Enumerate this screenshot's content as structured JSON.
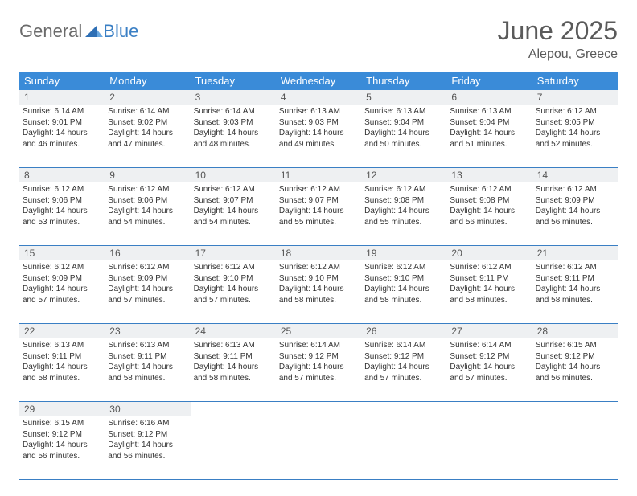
{
  "logo": {
    "text1": "General",
    "text2": "Blue"
  },
  "title": "June 2025",
  "location": "Alepou, Greece",
  "colors": {
    "header_bg": "#3a8bd8",
    "header_text": "#ffffff",
    "rule": "#3a7fc4",
    "daynum_bg": "#eef0f2",
    "body_text": "#333333",
    "title_text": "#5a5a5a"
  },
  "day_names": [
    "Sunday",
    "Monday",
    "Tuesday",
    "Wednesday",
    "Thursday",
    "Friday",
    "Saturday"
  ],
  "weeks": [
    {
      "nums": [
        "1",
        "2",
        "3",
        "4",
        "5",
        "6",
        "7"
      ],
      "cells": [
        {
          "sunrise": "Sunrise: 6:14 AM",
          "sunset": "Sunset: 9:01 PM",
          "day1": "Daylight: 14 hours",
          "day2": "and 46 minutes."
        },
        {
          "sunrise": "Sunrise: 6:14 AM",
          "sunset": "Sunset: 9:02 PM",
          "day1": "Daylight: 14 hours",
          "day2": "and 47 minutes."
        },
        {
          "sunrise": "Sunrise: 6:14 AM",
          "sunset": "Sunset: 9:03 PM",
          "day1": "Daylight: 14 hours",
          "day2": "and 48 minutes."
        },
        {
          "sunrise": "Sunrise: 6:13 AM",
          "sunset": "Sunset: 9:03 PM",
          "day1": "Daylight: 14 hours",
          "day2": "and 49 minutes."
        },
        {
          "sunrise": "Sunrise: 6:13 AM",
          "sunset": "Sunset: 9:04 PM",
          "day1": "Daylight: 14 hours",
          "day2": "and 50 minutes."
        },
        {
          "sunrise": "Sunrise: 6:13 AM",
          "sunset": "Sunset: 9:04 PM",
          "day1": "Daylight: 14 hours",
          "day2": "and 51 minutes."
        },
        {
          "sunrise": "Sunrise: 6:12 AM",
          "sunset": "Sunset: 9:05 PM",
          "day1": "Daylight: 14 hours",
          "day2": "and 52 minutes."
        }
      ]
    },
    {
      "nums": [
        "8",
        "9",
        "10",
        "11",
        "12",
        "13",
        "14"
      ],
      "cells": [
        {
          "sunrise": "Sunrise: 6:12 AM",
          "sunset": "Sunset: 9:06 PM",
          "day1": "Daylight: 14 hours",
          "day2": "and 53 minutes."
        },
        {
          "sunrise": "Sunrise: 6:12 AM",
          "sunset": "Sunset: 9:06 PM",
          "day1": "Daylight: 14 hours",
          "day2": "and 54 minutes."
        },
        {
          "sunrise": "Sunrise: 6:12 AM",
          "sunset": "Sunset: 9:07 PM",
          "day1": "Daylight: 14 hours",
          "day2": "and 54 minutes."
        },
        {
          "sunrise": "Sunrise: 6:12 AM",
          "sunset": "Sunset: 9:07 PM",
          "day1": "Daylight: 14 hours",
          "day2": "and 55 minutes."
        },
        {
          "sunrise": "Sunrise: 6:12 AM",
          "sunset": "Sunset: 9:08 PM",
          "day1": "Daylight: 14 hours",
          "day2": "and 55 minutes."
        },
        {
          "sunrise": "Sunrise: 6:12 AM",
          "sunset": "Sunset: 9:08 PM",
          "day1": "Daylight: 14 hours",
          "day2": "and 56 minutes."
        },
        {
          "sunrise": "Sunrise: 6:12 AM",
          "sunset": "Sunset: 9:09 PM",
          "day1": "Daylight: 14 hours",
          "day2": "and 56 minutes."
        }
      ]
    },
    {
      "nums": [
        "15",
        "16",
        "17",
        "18",
        "19",
        "20",
        "21"
      ],
      "cells": [
        {
          "sunrise": "Sunrise: 6:12 AM",
          "sunset": "Sunset: 9:09 PM",
          "day1": "Daylight: 14 hours",
          "day2": "and 57 minutes."
        },
        {
          "sunrise": "Sunrise: 6:12 AM",
          "sunset": "Sunset: 9:09 PM",
          "day1": "Daylight: 14 hours",
          "day2": "and 57 minutes."
        },
        {
          "sunrise": "Sunrise: 6:12 AM",
          "sunset": "Sunset: 9:10 PM",
          "day1": "Daylight: 14 hours",
          "day2": "and 57 minutes."
        },
        {
          "sunrise": "Sunrise: 6:12 AM",
          "sunset": "Sunset: 9:10 PM",
          "day1": "Daylight: 14 hours",
          "day2": "and 58 minutes."
        },
        {
          "sunrise": "Sunrise: 6:12 AM",
          "sunset": "Sunset: 9:10 PM",
          "day1": "Daylight: 14 hours",
          "day2": "and 58 minutes."
        },
        {
          "sunrise": "Sunrise: 6:12 AM",
          "sunset": "Sunset: 9:11 PM",
          "day1": "Daylight: 14 hours",
          "day2": "and 58 minutes."
        },
        {
          "sunrise": "Sunrise: 6:12 AM",
          "sunset": "Sunset: 9:11 PM",
          "day1": "Daylight: 14 hours",
          "day2": "and 58 minutes."
        }
      ]
    },
    {
      "nums": [
        "22",
        "23",
        "24",
        "25",
        "26",
        "27",
        "28"
      ],
      "cells": [
        {
          "sunrise": "Sunrise: 6:13 AM",
          "sunset": "Sunset: 9:11 PM",
          "day1": "Daylight: 14 hours",
          "day2": "and 58 minutes."
        },
        {
          "sunrise": "Sunrise: 6:13 AM",
          "sunset": "Sunset: 9:11 PM",
          "day1": "Daylight: 14 hours",
          "day2": "and 58 minutes."
        },
        {
          "sunrise": "Sunrise: 6:13 AM",
          "sunset": "Sunset: 9:11 PM",
          "day1": "Daylight: 14 hours",
          "day2": "and 58 minutes."
        },
        {
          "sunrise": "Sunrise: 6:14 AM",
          "sunset": "Sunset: 9:12 PM",
          "day1": "Daylight: 14 hours",
          "day2": "and 57 minutes."
        },
        {
          "sunrise": "Sunrise: 6:14 AM",
          "sunset": "Sunset: 9:12 PM",
          "day1": "Daylight: 14 hours",
          "day2": "and 57 minutes."
        },
        {
          "sunrise": "Sunrise: 6:14 AM",
          "sunset": "Sunset: 9:12 PM",
          "day1": "Daylight: 14 hours",
          "day2": "and 57 minutes."
        },
        {
          "sunrise": "Sunrise: 6:15 AM",
          "sunset": "Sunset: 9:12 PM",
          "day1": "Daylight: 14 hours",
          "day2": "and 56 minutes."
        }
      ]
    },
    {
      "nums": [
        "29",
        "30",
        "",
        "",
        "",
        "",
        ""
      ],
      "cells": [
        {
          "sunrise": "Sunrise: 6:15 AM",
          "sunset": "Sunset: 9:12 PM",
          "day1": "Daylight: 14 hours",
          "day2": "and 56 minutes."
        },
        {
          "sunrise": "Sunrise: 6:16 AM",
          "sunset": "Sunset: 9:12 PM",
          "day1": "Daylight: 14 hours",
          "day2": "and 56 minutes."
        },
        null,
        null,
        null,
        null,
        null
      ]
    }
  ]
}
